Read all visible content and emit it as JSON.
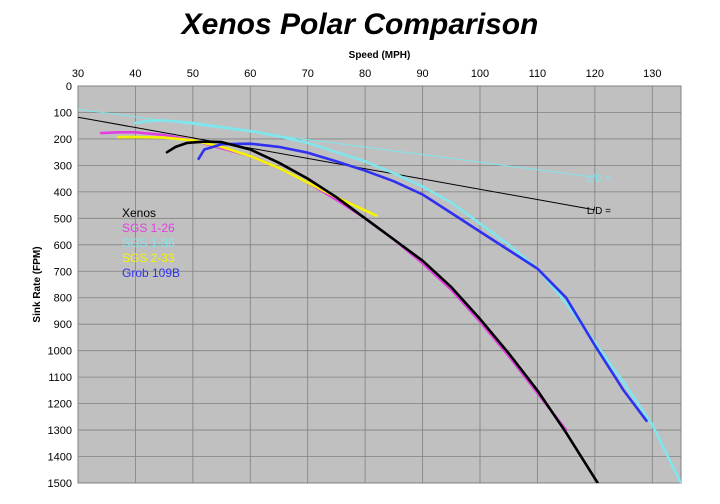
{
  "chart_data": {
    "type": "line",
    "title": "Xenos Polar Comparison",
    "xlabel": "Speed (MPH)",
    "ylabel": "Sink Rate (FPM)",
    "xlim": [
      30,
      135
    ],
    "ylim": [
      0,
      1500
    ],
    "y_inverted": true,
    "x_axis_position": "top",
    "grid": true,
    "x_ticks": [
      30,
      40,
      50,
      60,
      70,
      80,
      90,
      100,
      110,
      120,
      130
    ],
    "y_ticks": [
      0,
      100,
      200,
      300,
      400,
      500,
      600,
      700,
      800,
      900,
      1000,
      1100,
      1200,
      1300,
      1400,
      1500
    ],
    "legend_position": "left",
    "colors": {
      "plot_background": "#c0c0c0",
      "grid": "#808080",
      "Xenos": "#000000",
      "SGS 1-26": "#e040e0",
      "SGS 1-36": "#7fe6ee",
      "SGS 2-33": "#f4f400",
      "Grob 109B": "#3030f0"
    },
    "series": [
      {
        "name": "Xenos",
        "color": "#000000",
        "x": [
          45.5,
          47,
          49,
          52,
          55,
          60,
          65,
          70,
          75,
          80,
          85,
          90,
          95,
          100,
          105,
          110,
          115,
          120.5
        ],
        "y": [
          250,
          230,
          215,
          210,
          212,
          240,
          290,
          350,
          420,
          500,
          580,
          660,
          760,
          880,
          1010,
          1150,
          1310,
          1500
        ]
      },
      {
        "name": "SGS 1-26",
        "color": "#e040e0",
        "x": [
          34,
          37,
          40,
          45,
          50,
          55,
          60,
          65,
          70,
          75,
          80,
          85,
          90,
          95,
          100,
          105,
          110,
          115
        ],
        "y": [
          178,
          175,
          175,
          185,
          205,
          235,
          265,
          310,
          365,
          430,
          500,
          580,
          670,
          770,
          890,
          1020,
          1160,
          1300
        ]
      },
      {
        "name": "SGS 1-36",
        "color": "#7fe6ee",
        "x": [
          40,
          42,
          45,
          50,
          55,
          60,
          65,
          70,
          75,
          80,
          85,
          90,
          95,
          100,
          105,
          110,
          115,
          120,
          125,
          130,
          135
        ],
        "y": [
          140,
          133,
          130,
          140,
          155,
          170,
          190,
          215,
          250,
          285,
          330,
          380,
          440,
          520,
          600,
          690,
          820,
          970,
          1120,
          1280,
          1500
        ]
      },
      {
        "name": "SGS 2-33",
        "color": "#f4f400",
        "x": [
          37,
          40,
          45,
          50,
          55,
          60,
          65,
          70,
          75,
          80,
          82
        ],
        "y": [
          193,
          193,
          195,
          205,
          230,
          265,
          310,
          365,
          420,
          470,
          490
        ]
      },
      {
        "name": "Grob 109B",
        "color": "#3030f0",
        "x": [
          51,
          52,
          55,
          60,
          65,
          70,
          75,
          80,
          85,
          90,
          95,
          100,
          105,
          110,
          115,
          120,
          125,
          129
        ],
        "y": [
          275,
          240,
          220,
          218,
          230,
          252,
          285,
          320,
          360,
          410,
          480,
          550,
          620,
          690,
          800,
          980,
          1150,
          1265
        ]
      }
    ],
    "reference_lines": [
      {
        "label": "L/D =",
        "color": "#000000",
        "x": [
          30,
          120
        ],
        "y": [
          118,
          468
        ]
      },
      {
        "label": "L/D =",
        "color": "#7fe6ee",
        "x": [
          30,
          120
        ],
        "y": [
          88,
          345
        ]
      }
    ]
  }
}
